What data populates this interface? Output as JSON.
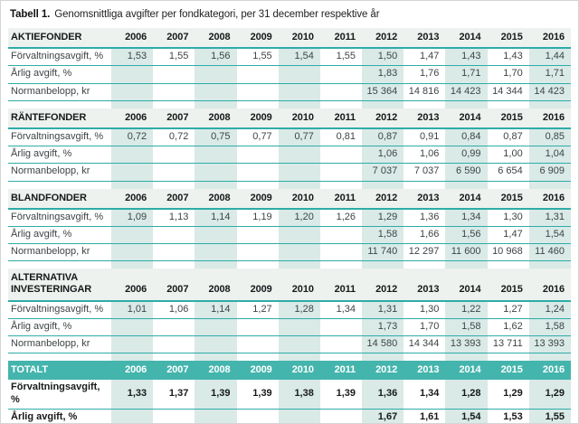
{
  "title": {
    "label": "Tabell 1.",
    "text": "Genomsnittliga avgifter per fondkategori, per 31 december respektive år"
  },
  "years": [
    "2006",
    "2007",
    "2008",
    "2009",
    "2010",
    "2011",
    "2012",
    "2013",
    "2014",
    "2015",
    "2016"
  ],
  "colors": {
    "accent_teal_border": "#2eaca8",
    "total_row_bg": "#44b5ad",
    "column_stripe": "#d9eae7",
    "section_header_bg": "#edf2ef"
  },
  "sections": [
    {
      "id": "aktiefonder",
      "name": "AKTIEFONDER",
      "rows": [
        {
          "label": "Förvaltningsavgift, %",
          "values": [
            "1,53",
            "1,55",
            "1,56",
            "1,55",
            "1,54",
            "1,55",
            "1,50",
            "1,47",
            "1,43",
            "1,43",
            "1,44"
          ]
        },
        {
          "label": "Årlig avgift, %",
          "values": [
            "",
            "",
            "",
            "",
            "",
            "",
            "1,83",
            "1,76",
            "1,71",
            "1,70",
            "1,71"
          ]
        },
        {
          "label": "Normanbelopp, kr",
          "values": [
            "",
            "",
            "",
            "",
            "",
            "",
            "15 364",
            "14 816",
            "14 423",
            "14 344",
            "14 423"
          ]
        }
      ]
    },
    {
      "id": "rantefonder",
      "name": "RÄNTEFONDER",
      "rows": [
        {
          "label": "Förvaltningsavgift, %",
          "values": [
            "0,72",
            "0,72",
            "0,75",
            "0,77",
            "0,77",
            "0,81",
            "0,87",
            "0,91",
            "0,84",
            "0,87",
            "0,85"
          ]
        },
        {
          "label": "Årlig avgift, %",
          "values": [
            "",
            "",
            "",
            "",
            "",
            "",
            "1,06",
            "1,06",
            "0,99",
            "1,00",
            "1,04"
          ]
        },
        {
          "label": "Normanbelopp, kr",
          "values": [
            "",
            "",
            "",
            "",
            "",
            "",
            "7 037",
            "7 037",
            "6 590",
            "6 654",
            "6 909"
          ]
        }
      ]
    },
    {
      "id": "blandfonder",
      "name": "BLANDFONDER",
      "rows": [
        {
          "label": "Förvaltningsavgift, %",
          "values": [
            "1,09",
            "1,13",
            "1,14",
            "1,19",
            "1,20",
            "1,26",
            "1,29",
            "1,36",
            "1,34",
            "1,30",
            "1,31"
          ]
        },
        {
          "label": "Årlig avgift, %",
          "values": [
            "",
            "",
            "",
            "",
            "",
            "",
            "1,58",
            "1,66",
            "1,56",
            "1,47",
            "1,54"
          ]
        },
        {
          "label": "Normanbelopp, kr",
          "values": [
            "",
            "",
            "",
            "",
            "",
            "",
            "11 740",
            "12 297",
            "11 600",
            "10 968",
            "11 460"
          ]
        }
      ]
    },
    {
      "id": "alternativa-investeringar",
      "name": "ALTERNATIVA INVESTERINGAR",
      "rows": [
        {
          "label": "Förvaltningsavgift, %",
          "values": [
            "1,01",
            "1,06",
            "1,14",
            "1,27",
            "1,28",
            "1,34",
            "1,31",
            "1,30",
            "1,22",
            "1,27",
            "1,24"
          ]
        },
        {
          "label": "Årlig avgift, %",
          "values": [
            "",
            "",
            "",
            "",
            "",
            "",
            "1,73",
            "1,70",
            "1,58",
            "1,62",
            "1,58"
          ]
        },
        {
          "label": "Normanbelopp, kr",
          "values": [
            "",
            "",
            "",
            "",
            "",
            "",
            "14 580",
            "14 344",
            "13 393",
            "13 711",
            "13 393"
          ]
        }
      ]
    }
  ],
  "total": {
    "id": "totalt",
    "name": "TOTALT",
    "rows": [
      {
        "label": "Förvaltningsavgift, %",
        "values": [
          "1,33",
          "1,37",
          "1,39",
          "1,39",
          "1,38",
          "1,39",
          "1,36",
          "1,34",
          "1,28",
          "1,29",
          "1,29"
        ]
      },
      {
        "label": "Årlig avgift, %",
        "values": [
          "",
          "",
          "",
          "",
          "",
          "",
          "1,67",
          "1,61",
          "1,54",
          "1,53",
          "1,55"
        ]
      }
    ]
  }
}
